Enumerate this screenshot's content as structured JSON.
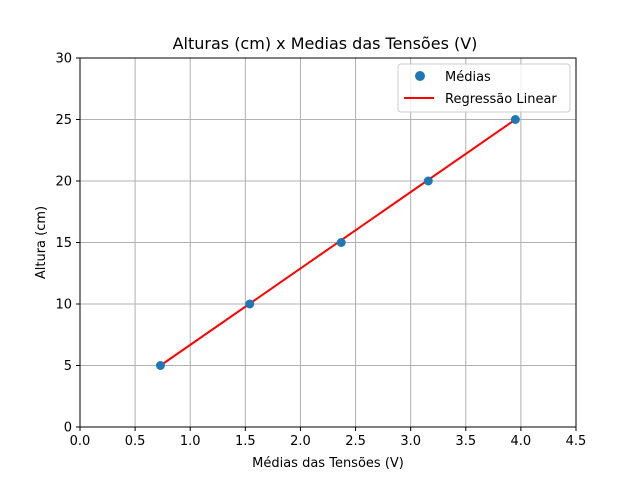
{
  "chart_data": {
    "type": "scatter",
    "title": "Alturas (cm) x Medias das Tensões (V)",
    "xlabel": "Médias das Tensões (V)",
    "ylabel": "Altura (cm)",
    "xlim": [
      0,
      4.5
    ],
    "ylim": [
      0,
      30
    ],
    "x_ticks": [
      "0.0",
      "0.5",
      "1.0",
      "1.5",
      "2.0",
      "2.5",
      "3.0",
      "3.5",
      "4.0",
      "4.5"
    ],
    "y_ticks": [
      "0",
      "5",
      "10",
      "15",
      "20",
      "25",
      "30"
    ],
    "grid": true,
    "legend_position": "top-right",
    "series": [
      {
        "name": "Médias",
        "kind": "scatter",
        "color": "#1f77b4",
        "x": [
          0.73,
          1.54,
          2.37,
          3.16,
          3.95
        ],
        "y": [
          5,
          10,
          15,
          20,
          25
        ]
      },
      {
        "name": "Regressão Linear",
        "kind": "line",
        "color": "#ff0000",
        "x": [
          0.73,
          3.95
        ],
        "y": [
          5,
          25
        ]
      }
    ]
  }
}
